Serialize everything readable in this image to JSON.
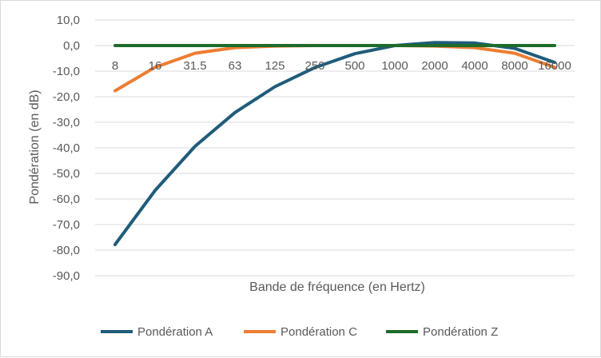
{
  "chart_data": {
    "type": "line",
    "categories": [
      "8",
      "16",
      "31.5",
      "63",
      "125",
      "250",
      "500",
      "1000",
      "2000",
      "4000",
      "8000",
      "16000"
    ],
    "xlabel": "Bande de fréquence (en Hertz)",
    "ylabel": "Pondération (en dB)",
    "ylim": [
      -90,
      10
    ],
    "yticks": [
      "10,0",
      "0,0",
      "-10,0",
      "-20,0",
      "-30,0",
      "-40,0",
      "-50,0",
      "-60,0",
      "-70,0",
      "-80,0",
      "-90,0"
    ],
    "grid": true,
    "legend": "bottom",
    "series": [
      {
        "name": "Pondération A",
        "color": "#1f5c7a",
        "values": [
          -77.8,
          -56.7,
          -39.4,
          -26.2,
          -16.1,
          -8.6,
          -3.2,
          0.0,
          1.2,
          1.0,
          -1.1,
          -6.6
        ]
      },
      {
        "name": "Pondération C",
        "color": "#ed7d31",
        "values": [
          -17.7,
          -8.5,
          -3.0,
          -0.8,
          -0.2,
          0.0,
          0.0,
          0.0,
          -0.2,
          -0.8,
          -3.0,
          -8.5
        ]
      },
      {
        "name": "Pondération Z",
        "color": "#1e6b2a",
        "values": [
          0,
          0,
          0,
          0,
          0,
          0,
          0,
          0,
          0,
          0,
          0,
          0
        ]
      }
    ]
  }
}
